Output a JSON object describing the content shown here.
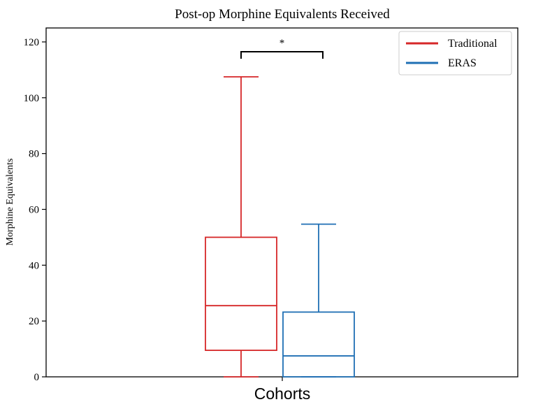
{
  "chart_data": {
    "type": "box",
    "title": "Post-op Morphine Equivalents Received",
    "xlabel": "Cohorts",
    "ylabel": "Morphine Equivalents",
    "ylim": [
      0,
      125
    ],
    "yticks": [
      0,
      20,
      40,
      60,
      80,
      100,
      120
    ],
    "grid": false,
    "legend_position": "top-right",
    "significance_marker": "*",
    "series": [
      {
        "name": "Traditional",
        "color": "#d62728",
        "whisker_low": 0,
        "q1": 9.5,
        "median": 25.5,
        "q3": 50,
        "whisker_high": 107.5
      },
      {
        "name": "ERAS",
        "color": "#1f6fb4",
        "whisker_low": 0,
        "q1": 0,
        "median": 7.5,
        "q3": 23.2,
        "whisker_high": 54.7
      }
    ]
  }
}
